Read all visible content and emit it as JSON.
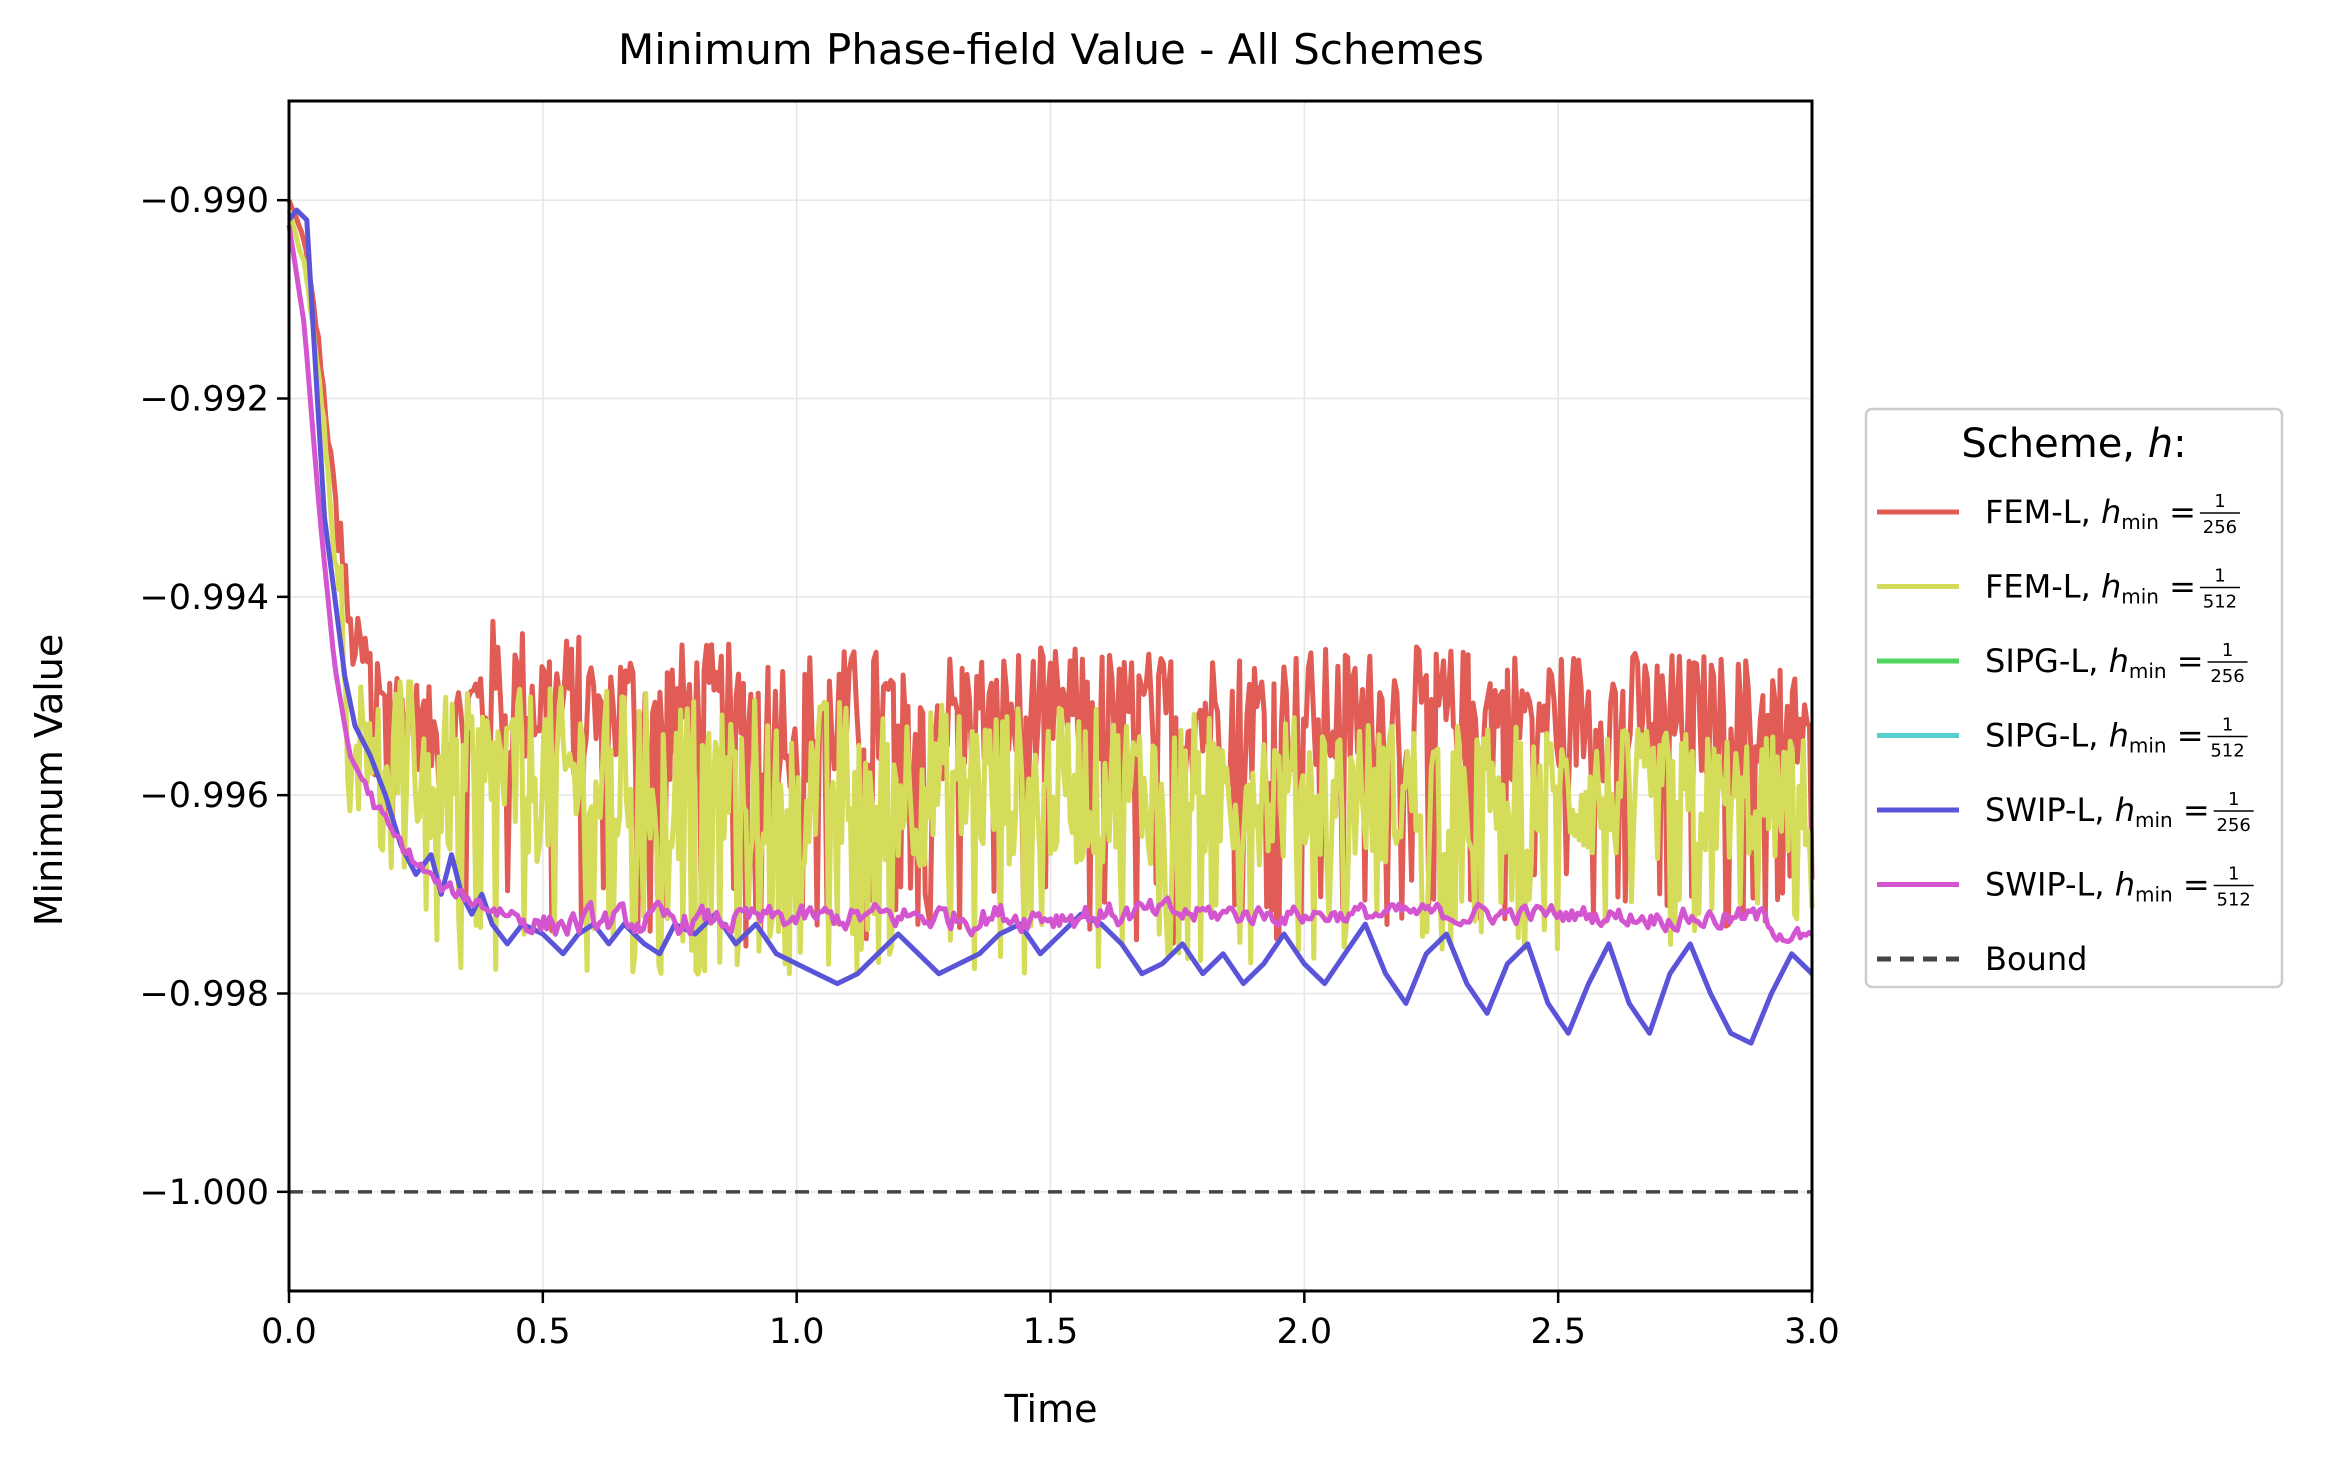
{
  "chart_data": {
    "type": "line",
    "title": "Minimum Phase-field Value - All Schemes",
    "xlabel": "Time",
    "ylabel": "Minimum Value",
    "xlim": [
      0.0,
      3.0
    ],
    "ylim": [
      -1.001,
      -0.989
    ],
    "grid": true,
    "x_ticks": [
      0.0,
      0.5,
      1.0,
      1.5,
      2.0,
      2.5,
      3.0
    ],
    "x_tick_labels": [
      "0.0",
      "0.5",
      "1.0",
      "1.5",
      "2.0",
      "2.5",
      "3.0"
    ],
    "y_ticks": [
      -0.99,
      -0.992,
      -0.994,
      -0.996,
      -0.998,
      -1.0
    ],
    "y_tick_labels": [
      "−0.990",
      "−0.992",
      "−0.994",
      "−0.996",
      "−0.998",
      "−1.000"
    ],
    "legend": {
      "title_main": "Scheme, ",
      "title_var": "h",
      "title_end": ":",
      "placement": "center-right-outside"
    },
    "series": [
      {
        "name": "FEM-L",
        "h_num": "1",
        "h_den": "256",
        "h_sym": "h",
        "h_sub": "min",
        "eq": "=",
        "color": "#e05c55",
        "pattern": "spiky-high",
        "envelope": [
          [
            0.0,
            -0.99,
            -0.99
          ],
          [
            0.03,
            -0.9905,
            -0.9903
          ],
          [
            0.06,
            -0.9918,
            -0.9912
          ],
          [
            0.09,
            -0.9935,
            -0.9925
          ],
          [
            0.12,
            -0.9955,
            -0.9941
          ],
          [
            0.2,
            -0.9965,
            -0.9946
          ],
          [
            0.3,
            -0.9972,
            -0.995
          ],
          [
            0.4,
            -0.9975,
            -0.9942
          ],
          [
            0.6,
            -0.9977,
            -0.9944
          ],
          [
            1.0,
            -0.9977,
            -0.9945
          ],
          [
            1.5,
            -0.9977,
            -0.9945
          ],
          [
            2.0,
            -0.9976,
            -0.9945
          ],
          [
            2.5,
            -0.9975,
            -0.9945
          ],
          [
            3.0,
            -0.9975,
            -0.9946
          ]
        ]
      },
      {
        "name": "FEM-L",
        "h_num": "1",
        "h_den": "512",
        "h_sym": "h",
        "h_sub": "min",
        "eq": "=",
        "color": "#d4dc5a",
        "pattern": "spiky-mid",
        "envelope": [
          [
            0.0,
            -0.9901,
            -0.9901
          ],
          [
            0.03,
            -0.9908,
            -0.9905
          ],
          [
            0.06,
            -0.992,
            -0.9915
          ],
          [
            0.09,
            -0.994,
            -0.993
          ],
          [
            0.12,
            -0.9965,
            -0.9944
          ],
          [
            0.2,
            -0.9972,
            -0.9947
          ],
          [
            0.3,
            -0.9978,
            -0.995
          ],
          [
            0.5,
            -0.9979,
            -0.9949
          ],
          [
            1.0,
            -0.9979,
            -0.995
          ],
          [
            1.5,
            -0.9978,
            -0.9951
          ],
          [
            2.0,
            -0.9977,
            -0.9952
          ],
          [
            2.5,
            -0.9976,
            -0.9953
          ],
          [
            3.0,
            -0.9975,
            -0.9954
          ]
        ]
      },
      {
        "name": "SIPG-L",
        "h_num": "1",
        "h_den": "256",
        "h_sym": "h",
        "h_sub": "min",
        "eq": "=",
        "color": "#4fd45e",
        "pattern": "hidden",
        "envelope": []
      },
      {
        "name": "SIPG-L",
        "h_num": "1",
        "h_den": "512",
        "h_sym": "h",
        "h_sub": "min",
        "eq": "=",
        "color": "#56cfcf",
        "pattern": "hidden",
        "envelope": []
      },
      {
        "name": "SWIP-L",
        "h_num": "1",
        "h_den": "256",
        "h_sym": "h",
        "h_sub": "min",
        "eq": "=",
        "color": "#5a55d8",
        "pattern": "wavy-low",
        "points": [
          [
            0.0,
            -0.9902
          ],
          [
            0.015,
            -0.9901
          ],
          [
            0.035,
            -0.9902
          ],
          [
            0.05,
            -0.9915
          ],
          [
            0.07,
            -0.9932
          ],
          [
            0.09,
            -0.994
          ],
          [
            0.11,
            -0.9948
          ],
          [
            0.13,
            -0.9953
          ],
          [
            0.16,
            -0.9956
          ],
          [
            0.19,
            -0.996
          ],
          [
            0.22,
            -0.9965
          ],
          [
            0.25,
            -0.9968
          ],
          [
            0.28,
            -0.9966
          ],
          [
            0.3,
            -0.997
          ],
          [
            0.32,
            -0.9966
          ],
          [
            0.34,
            -0.997
          ],
          [
            0.36,
            -0.9972
          ],
          [
            0.38,
            -0.997
          ],
          [
            0.4,
            -0.9973
          ],
          [
            0.43,
            -0.9975
          ],
          [
            0.46,
            -0.9973
          ],
          [
            0.5,
            -0.9974
          ],
          [
            0.54,
            -0.9976
          ],
          [
            0.57,
            -0.9974
          ],
          [
            0.6,
            -0.9973
          ],
          [
            0.63,
            -0.9975
          ],
          [
            0.66,
            -0.9973
          ],
          [
            0.7,
            -0.9975
          ],
          [
            0.73,
            -0.9976
          ],
          [
            0.76,
            -0.9973
          ],
          [
            0.8,
            -0.9974
          ],
          [
            0.84,
            -0.9972
          ],
          [
            0.88,
            -0.9975
          ],
          [
            0.92,
            -0.9973
          ],
          [
            0.96,
            -0.9976
          ],
          [
            1.0,
            -0.9977
          ],
          [
            1.04,
            -0.9978
          ],
          [
            1.08,
            -0.9979
          ],
          [
            1.12,
            -0.9978
          ],
          [
            1.16,
            -0.9976
          ],
          [
            1.2,
            -0.9974
          ],
          [
            1.24,
            -0.9976
          ],
          [
            1.28,
            -0.9978
          ],
          [
            1.32,
            -0.9977
          ],
          [
            1.36,
            -0.9976
          ],
          [
            1.4,
            -0.9974
          ],
          [
            1.44,
            -0.9973
          ],
          [
            1.48,
            -0.9976
          ],
          [
            1.52,
            -0.9974
          ],
          [
            1.56,
            -0.9972
          ],
          [
            1.6,
            -0.9973
          ],
          [
            1.64,
            -0.9975
          ],
          [
            1.68,
            -0.9978
          ],
          [
            1.72,
            -0.9977
          ],
          [
            1.76,
            -0.9975
          ],
          [
            1.8,
            -0.9978
          ],
          [
            1.84,
            -0.9976
          ],
          [
            1.88,
            -0.9979
          ],
          [
            1.92,
            -0.9977
          ],
          [
            1.96,
            -0.9974
          ],
          [
            2.0,
            -0.9977
          ],
          [
            2.04,
            -0.9979
          ],
          [
            2.08,
            -0.9976
          ],
          [
            2.12,
            -0.9973
          ],
          [
            2.16,
            -0.9978
          ],
          [
            2.2,
            -0.9981
          ],
          [
            2.24,
            -0.9976
          ],
          [
            2.28,
            -0.9974
          ],
          [
            2.32,
            -0.9979
          ],
          [
            2.36,
            -0.9982
          ],
          [
            2.4,
            -0.9977
          ],
          [
            2.44,
            -0.9975
          ],
          [
            2.48,
            -0.9981
          ],
          [
            2.52,
            -0.9984
          ],
          [
            2.56,
            -0.9979
          ],
          [
            2.6,
            -0.9975
          ],
          [
            2.64,
            -0.9981
          ],
          [
            2.68,
            -0.9984
          ],
          [
            2.72,
            -0.9978
          ],
          [
            2.76,
            -0.9975
          ],
          [
            2.8,
            -0.998
          ],
          [
            2.84,
            -0.9984
          ],
          [
            2.88,
            -0.9985
          ],
          [
            2.92,
            -0.998
          ],
          [
            2.96,
            -0.9976
          ],
          [
            3.0,
            -0.9978
          ]
        ]
      },
      {
        "name": "SWIP-L",
        "h_num": "1",
        "h_den": "512",
        "h_sym": "h",
        "h_sub": "min",
        "eq": "=",
        "color": "#d455d0",
        "pattern": "noisy-low",
        "envelope": [
          [
            0.0,
            -0.9903,
            -0.9902
          ],
          [
            0.03,
            -0.9915,
            -0.991
          ],
          [
            0.06,
            -0.9935,
            -0.9928
          ],
          [
            0.09,
            -0.995,
            -0.9944
          ],
          [
            0.12,
            -0.9958,
            -0.9954
          ],
          [
            0.2,
            -0.9966,
            -0.9962
          ],
          [
            0.3,
            -0.9971,
            -0.9968
          ],
          [
            0.5,
            -0.9976,
            -0.997
          ],
          [
            1.0,
            -0.9975,
            -0.997
          ],
          [
            1.5,
            -0.9975,
            -0.9969
          ],
          [
            2.0,
            -0.9974,
            -0.997
          ],
          [
            2.5,
            -0.9974,
            -0.997
          ],
          [
            2.9,
            -0.9975,
            -0.997
          ],
          [
            3.0,
            -0.9977,
            -0.9973
          ]
        ]
      },
      {
        "name": "Bound",
        "color": "#444444",
        "pattern": "dashed",
        "value": -1.0
      }
    ]
  }
}
